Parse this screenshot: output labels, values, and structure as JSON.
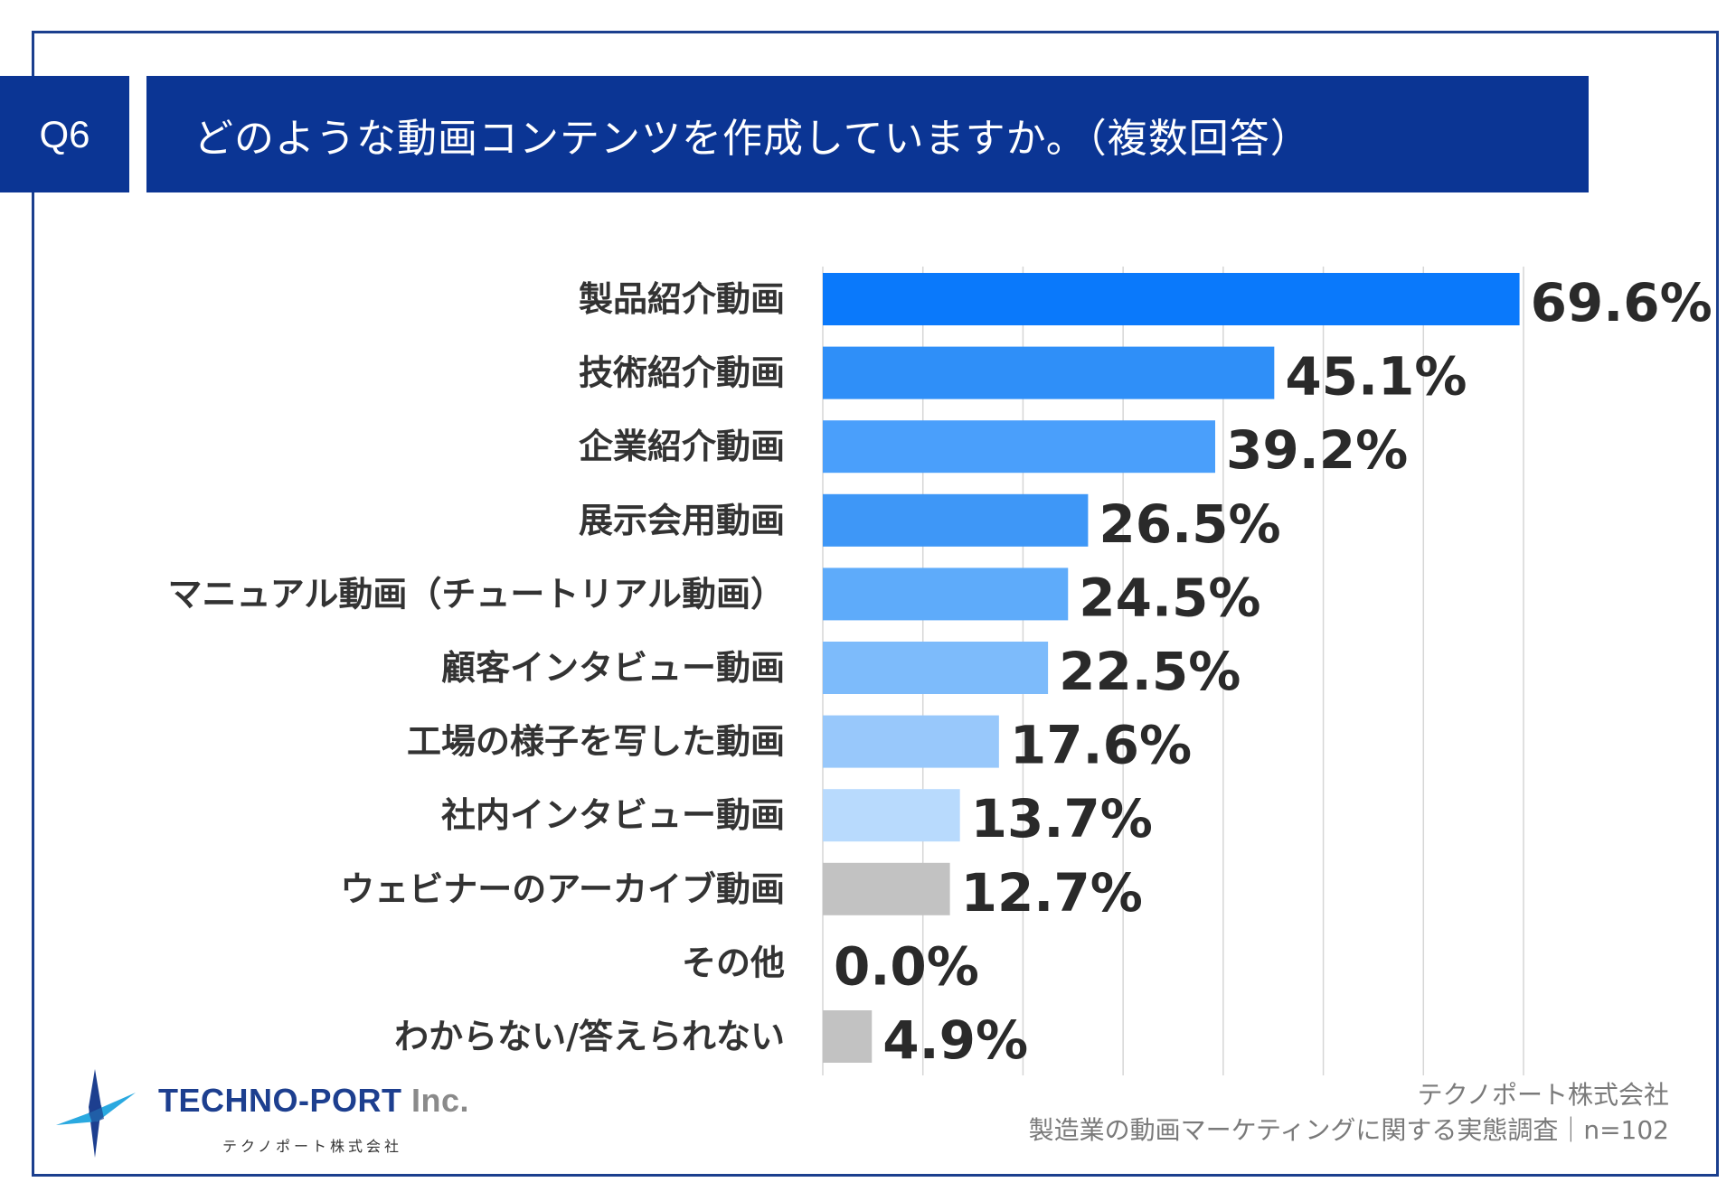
{
  "header": {
    "question_no": "Q6",
    "title": "どのような動画コンテンツを作成していますか。（複数回答）"
  },
  "chart_data": {
    "type": "bar",
    "orientation": "horizontal",
    "title": "どのような動画コンテンツを作成していますか。（複数回答）",
    "categories": [
      "製品紹介動画",
      "技術紹介動画",
      "企業紹介動画",
      "展示会用動画",
      "マニュアル動画（チュートリアル動画）",
      "顧客インタビュー動画",
      "工場の様子を写した動画",
      "社内インタビュー動画",
      "ウェビナーのアーカイブ動画",
      "その他",
      "わからない/答えられない"
    ],
    "values": [
      69.6,
      45.1,
      39.2,
      26.5,
      24.5,
      22.5,
      17.6,
      13.7,
      12.7,
      0.0,
      4.9
    ],
    "value_labels": [
      "69.6%",
      "45.1%",
      "39.2%",
      "26.5%",
      "24.5%",
      "22.5%",
      "17.6%",
      "13.7%",
      "12.7%",
      "0.0%",
      "4.9%"
    ],
    "colors": [
      "#0a79fb",
      "#2f8ff8",
      "#4a9ffb",
      "#3e97f7",
      "#5eabfa",
      "#7dbbfb",
      "#98c8fb",
      "#b8dafd",
      "#c2c2c2",
      "#c2c2c2",
      "#c2c2c2"
    ],
    "xlim": [
      0,
      70
    ],
    "grid_step": 10,
    "grid": true,
    "xlabel": "",
    "ylabel": ""
  },
  "logo": {
    "name": "TECHNO-PORT",
    "suffix": "Inc.",
    "sub": "テクノポート株式会社",
    "color_primary": "#1d3f8f",
    "color_accent": "#2aa9e0"
  },
  "source": {
    "line1": "テクノポート株式会社",
    "line2": "製造業の動画マーケティングに関する実態調査｜n=102"
  },
  "colors": {
    "header_bg": "#0b3594",
    "frame": "#1b3f8e",
    "gridline": "#d6d6d6"
  }
}
